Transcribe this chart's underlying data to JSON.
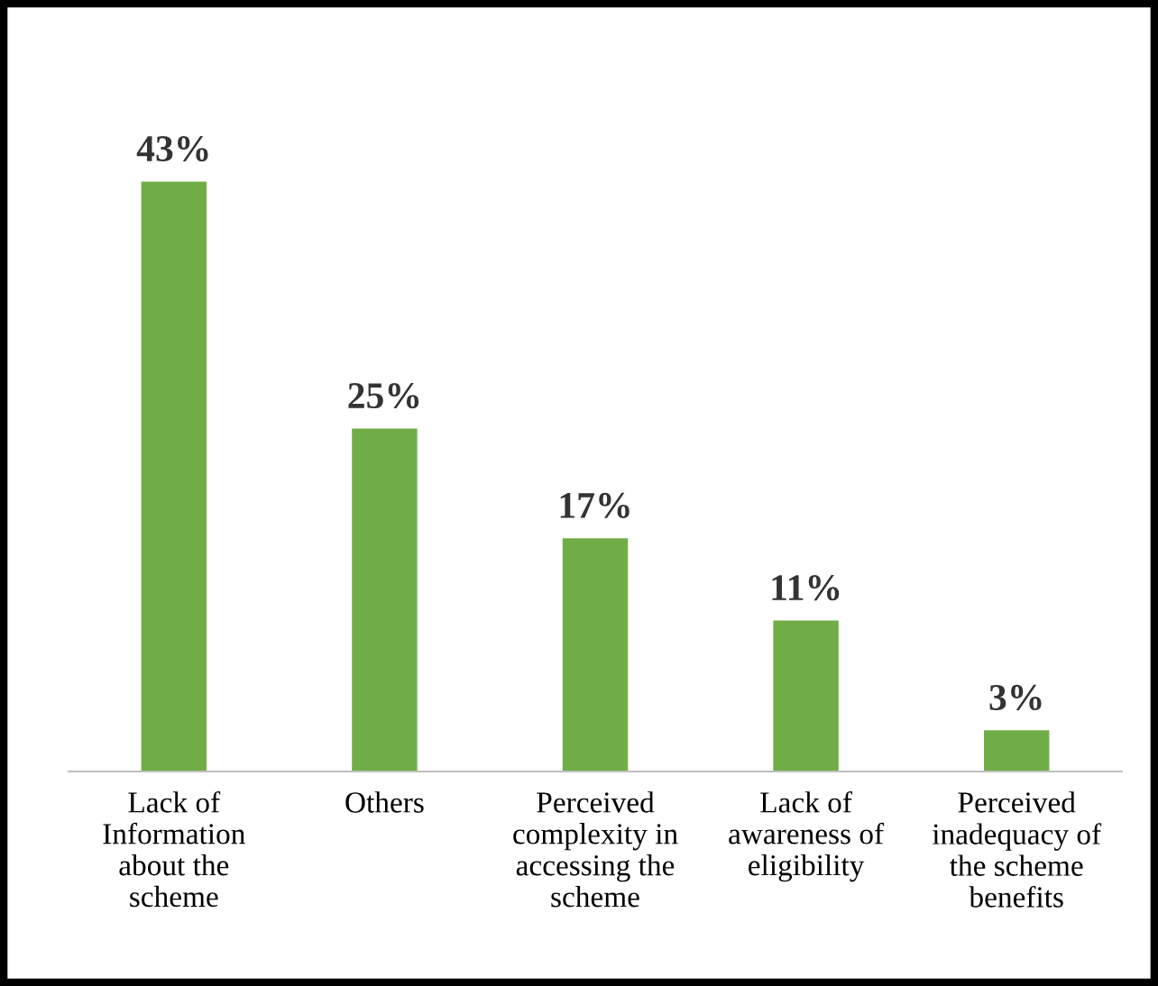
{
  "chart_data": {
    "type": "bar",
    "categories": [
      "Lack of\nInformation\nabout the\nscheme",
      "Others",
      "Perceived\ncomplexity in\naccessing the\nscheme",
      "Lack of\nawareness of\neligibility",
      "Perceived\ninadequacy of\nthe scheme\nbenefits"
    ],
    "values": [
      43,
      25,
      17,
      11,
      3
    ],
    "value_labels": [
      "43%",
      "25%",
      "17%",
      "11%",
      "3%"
    ],
    "color": "#70ad47",
    "grid": false,
    "legend": false
  }
}
